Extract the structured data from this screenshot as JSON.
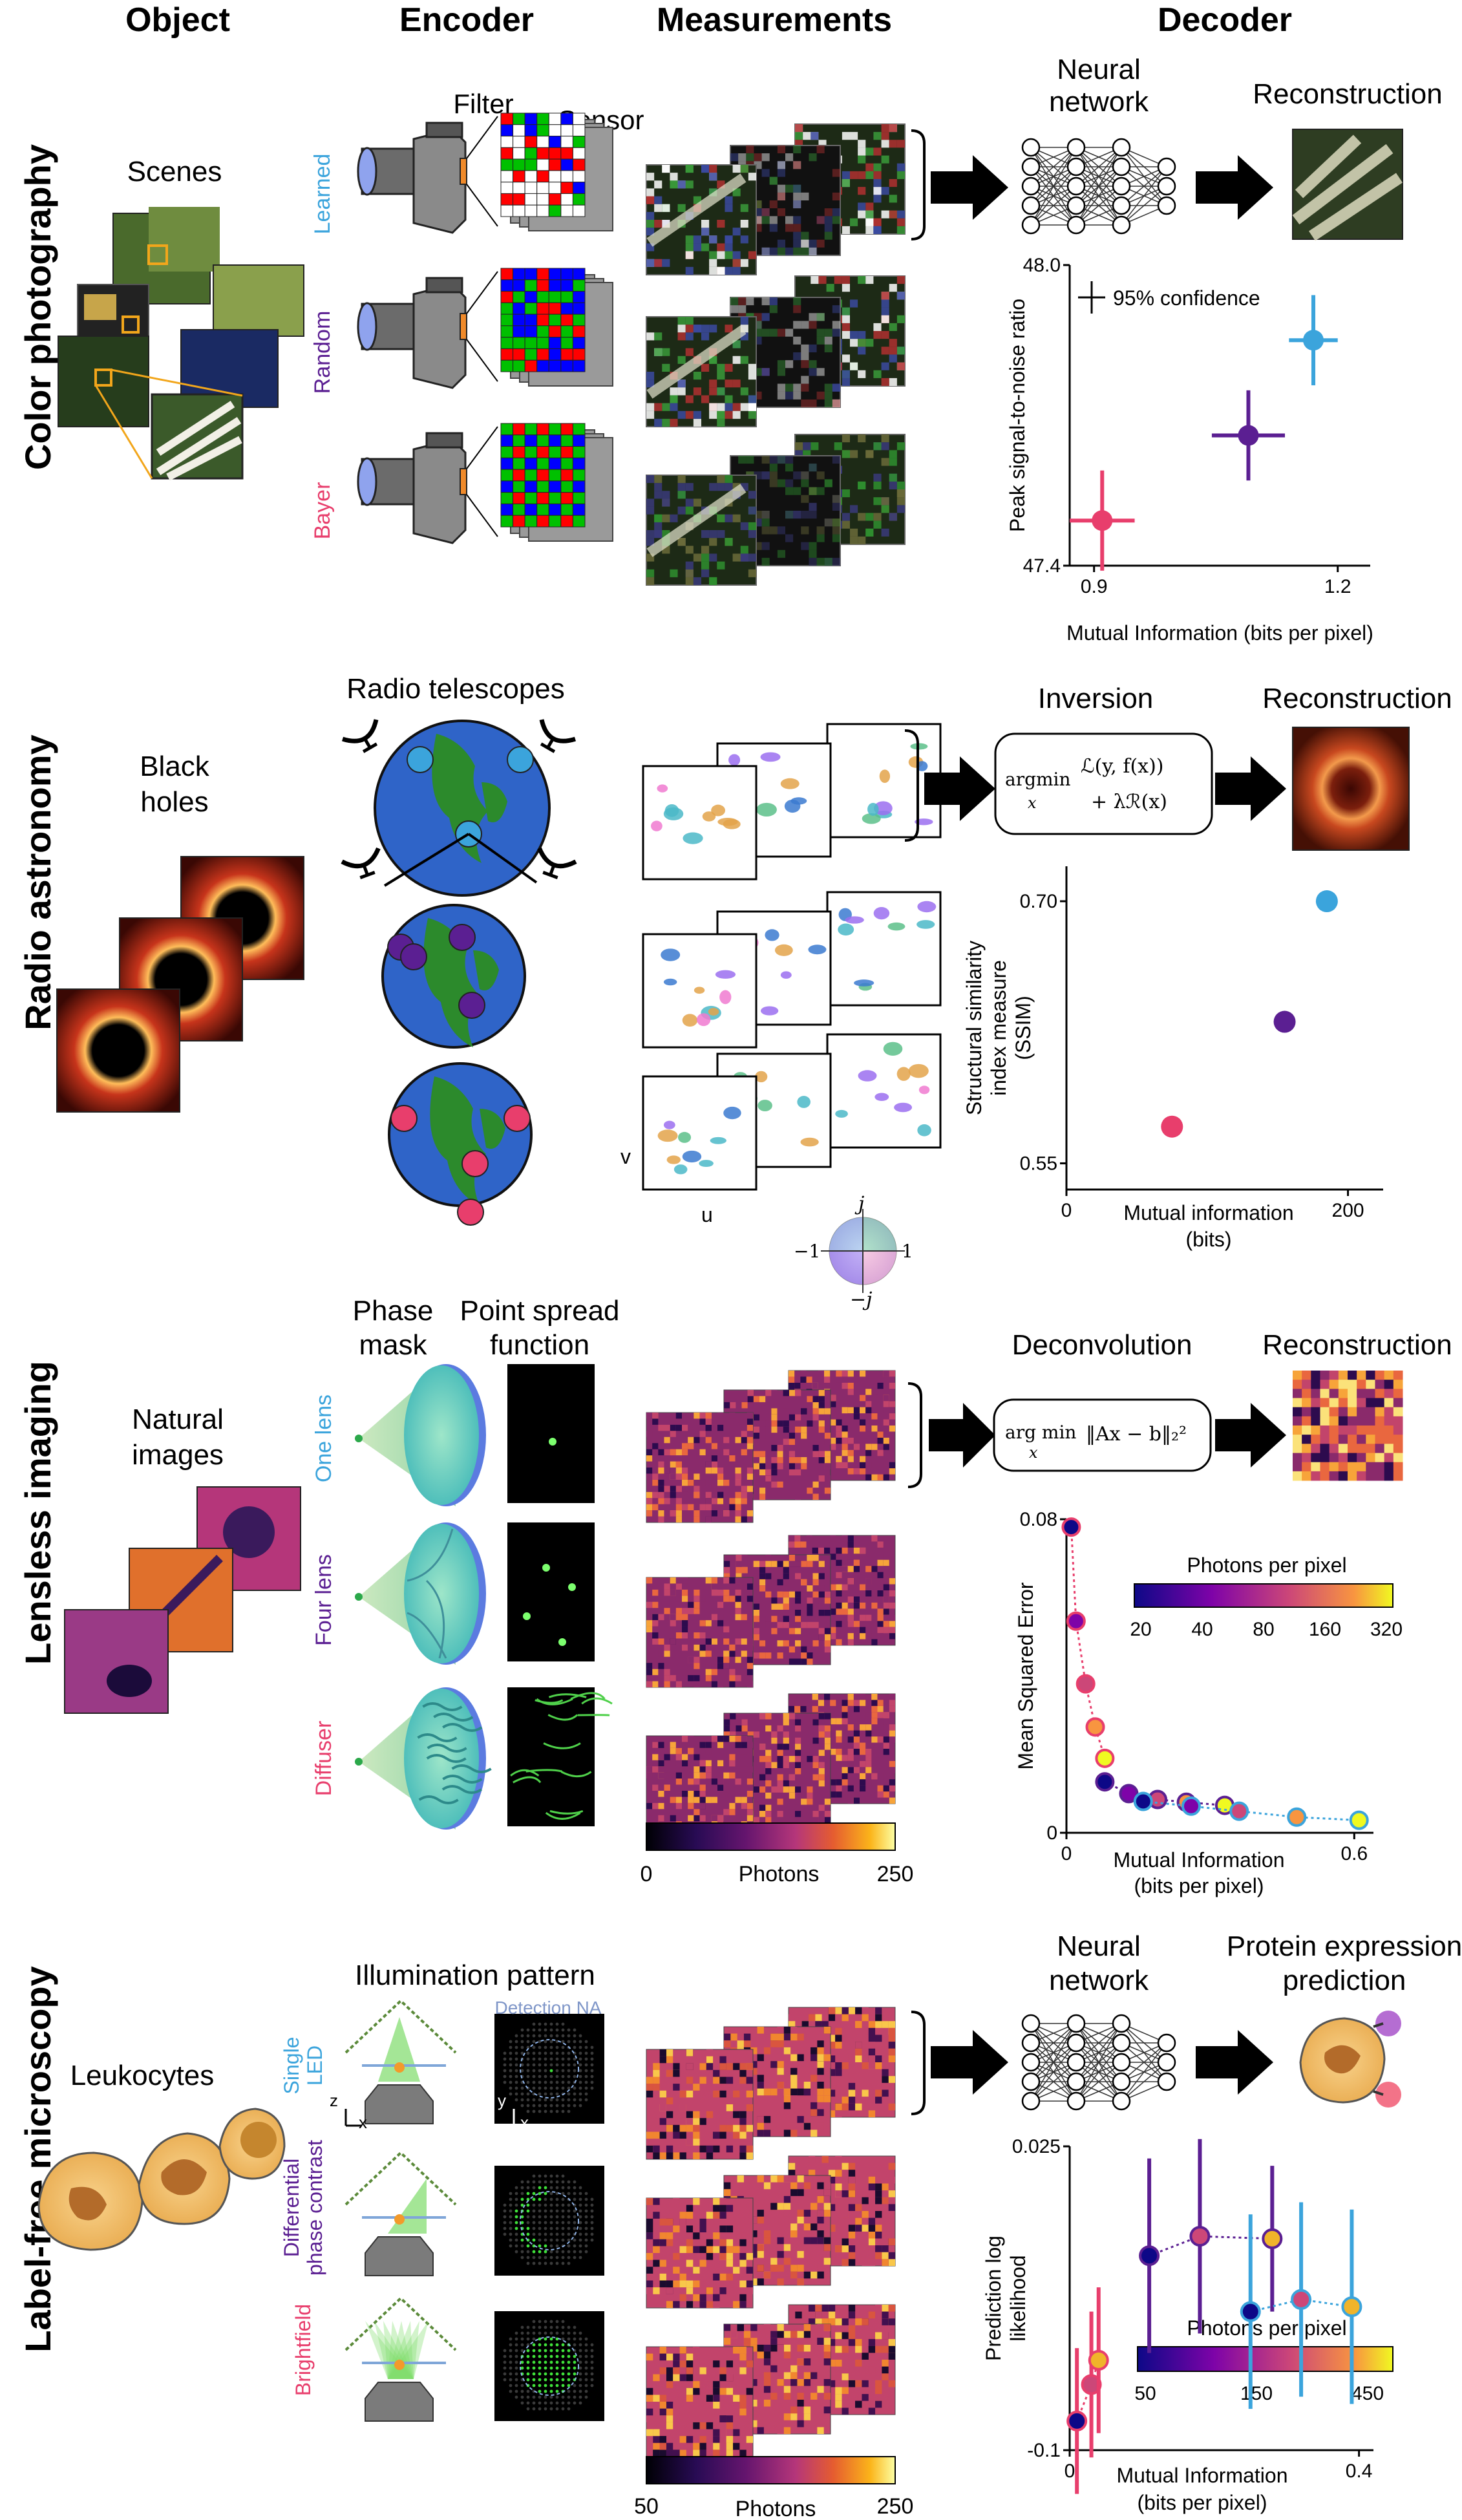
{
  "headers": {
    "object": "Object",
    "encoder": "Encoder",
    "measurements": "Measurements",
    "decoder": "Decoder"
  },
  "colors": {
    "learned": "#3ba4dc",
    "random": "#5b1f92",
    "bayer": "#e83e6c",
    "inferno_dark": "#0c0724",
    "inferno_mid": "#b5367a",
    "inferno_bright": "#fbb41a"
  },
  "rows": {
    "color": {
      "label": "Color photography",
      "scenes": "Scenes",
      "filter": "Filter",
      "sensor": "Sensor",
      "enc_labels": [
        "Learned",
        "Random",
        "Bayer"
      ],
      "decoder_title": [
        "Neural",
        "network"
      ],
      "recon_title": "Reconstruction",
      "legend_text": "95% confidence"
    },
    "astro": {
      "label": "Radio astronomy",
      "object": [
        "Black",
        "holes"
      ],
      "encoder_title": "Radio telescopes",
      "decoder_title": "Inversion",
      "recon_title": "Reconstruction",
      "formula": [
        "argmin",
        "x",
        "ℒ(y, f(x))",
        "+ λℛ(x)"
      ],
      "axis_v": "v",
      "axis_u": "u",
      "phase_labels": [
        "j",
        "−1",
        "1",
        "−j"
      ]
    },
    "lensless": {
      "label": "Lensless imaging",
      "object": [
        "Natural",
        "images"
      ],
      "mask_title": [
        "Phase",
        "mask"
      ],
      "psf_title": [
        "Point spread",
        "function"
      ],
      "enc_labels": [
        "One lens",
        "Four lens",
        "Diffuser"
      ],
      "decoder_title": "Deconvolution",
      "recon_title": "Reconstruction",
      "formula": [
        "arg min",
        "x",
        "‖Ax − b‖₂²"
      ],
      "colorbar": {
        "label": "Photons",
        "min": "0",
        "max": "250"
      }
    },
    "micro": {
      "label": "Label-free microscopy",
      "object": "Leukocytes",
      "encoder_title": "Illumination pattern",
      "enc_labels": [
        [
          "Single",
          "LED"
        ],
        [
          "Differential",
          "phase contrast"
        ],
        [
          "Brightfield"
        ]
      ],
      "detection": "Detection NA",
      "axes_labels": [
        "z",
        "x",
        "y",
        "x"
      ],
      "decoder_title": [
        "Neural",
        "network"
      ],
      "recon_title": [
        "Protein expression",
        "prediction"
      ],
      "colorbar": {
        "label": "Photons",
        "min": "50",
        "max": "250"
      }
    }
  },
  "chart_data": [
    {
      "type": "scatter",
      "xlabel": "Mutual Information (bits per pixel)",
      "ylabel": "Peak signal-to-noise ratio",
      "xlim": [
        0.87,
        1.24
      ],
      "ylim": [
        47.4,
        48.0
      ],
      "xticks": [
        "0.9",
        "1.2"
      ],
      "yticks": [
        "47.4",
        "48.0"
      ],
      "annotation": "95% confidence",
      "points": [
        {
          "x": 0.91,
          "y": 47.49,
          "xerr": 0.04,
          "yerr": 0.1,
          "color": "#e83e6c"
        },
        {
          "x": 1.09,
          "y": 47.66,
          "xerr": 0.045,
          "yerr": 0.09,
          "color": "#5b1f92"
        },
        {
          "x": 1.17,
          "y": 47.85,
          "xerr": 0.03,
          "yerr": 0.09,
          "color": "#3ba4dc"
        }
      ]
    },
    {
      "type": "scatter",
      "xlabel": "Mutual information (bits)",
      "ylabel": "Structural similarity index measure (SSIM)",
      "xlim": [
        0,
        225
      ],
      "ylim": [
        0.535,
        0.72
      ],
      "xticks": [
        "0",
        "200"
      ],
      "yticks": [
        "0.55",
        "0.70"
      ],
      "points": [
        {
          "x": 75,
          "y": 0.571,
          "color": "#e83e6c"
        },
        {
          "x": 155,
          "y": 0.631,
          "color": "#5b1f92"
        },
        {
          "x": 185,
          "y": 0.7,
          "color": "#3ba4dc"
        }
      ]
    },
    {
      "type": "scatter",
      "xlabel": "Mutual Information (bits per pixel)",
      "ylabel": "Mean Squared Error",
      "xlim": [
        0,
        0.64
      ],
      "ylim": [
        0,
        0.08
      ],
      "xticks": [
        "0",
        "0.6"
      ],
      "yticks": [
        "0",
        "0.08"
      ],
      "colorbar": {
        "label": "Photons per pixel",
        "ticks": [
          "20",
          "40",
          "80",
          "160",
          "320"
        ]
      },
      "series": [
        {
          "edge": "#e83e6c",
          "points": [
            [
              0.01,
              0.078
            ],
            [
              0.02,
              0.054
            ],
            [
              0.04,
              0.038
            ],
            [
              0.06,
              0.027
            ],
            [
              0.08,
              0.019
            ]
          ]
        },
        {
          "edge": "#5b1f92",
          "points": [
            [
              0.08,
              0.013
            ],
            [
              0.13,
              0.01
            ],
            [
              0.19,
              0.0085
            ],
            [
              0.25,
              0.0078
            ],
            [
              0.33,
              0.007
            ]
          ]
        },
        {
          "edge": "#3ba4dc",
          "points": [
            [
              0.16,
              0.008
            ],
            [
              0.26,
              0.0068
            ],
            [
              0.36,
              0.0055
            ],
            [
              0.48,
              0.004
            ],
            [
              0.61,
              0.0032
            ]
          ]
        }
      ]
    },
    {
      "type": "scatter",
      "xlabel": "Mutual Information (bits per pixel)",
      "ylabel": "Prediction log likelihood",
      "xlim": [
        0,
        0.42
      ],
      "ylim": [
        -0.1,
        0.025
      ],
      "xticks": [
        "0",
        "0.4"
      ],
      "yticks": [
        "0.025",
        "-0.1"
      ],
      "colorbar": {
        "label": "Photons per pixel",
        "ticks": [
          "50",
          "150",
          "450"
        ]
      },
      "series": [
        {
          "edge": "#e83e6c",
          "points": [
            [
              0.01,
              -0.088,
              0.03
            ],
            [
              0.03,
              -0.073,
              0.03
            ],
            [
              0.04,
              -0.063,
              0.03
            ]
          ]
        },
        {
          "edge": "#5b1f92",
          "points": [
            [
              0.11,
              -0.02,
              0.04
            ],
            [
              0.18,
              -0.012,
              0.04
            ],
            [
              0.28,
              -0.013,
              0.03
            ]
          ]
        },
        {
          "edge": "#3ba4dc",
          "points": [
            [
              0.25,
              -0.043,
              0.04
            ],
            [
              0.32,
              -0.038,
              0.04
            ],
            [
              0.39,
              -0.041,
              0.04
            ]
          ]
        }
      ]
    }
  ]
}
